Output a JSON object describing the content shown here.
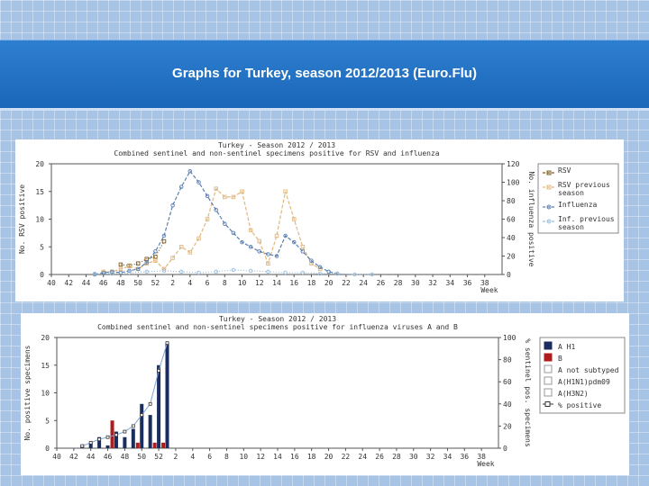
{
  "header": {
    "title": "Graphs for Turkey, season 2012/2013 (Euro.Flu)"
  },
  "chart_data": [
    {
      "type": "line",
      "title": "Turkey - Season 2012 / 2013",
      "subtitle": "Combined sentinel and non-sentinel specimens positive for RSV and influenza",
      "xlabel": "Week",
      "ylabel": "No. RSV positive",
      "y2label": "No. influenza positive",
      "xticks": [
        "40",
        "42",
        "44",
        "46",
        "48",
        "50",
        "52",
        "2",
        "4",
        "6",
        "8",
        "10",
        "12",
        "14",
        "16",
        "18",
        "20",
        "22",
        "24",
        "26",
        "28",
        "30",
        "32",
        "34",
        "36",
        "38"
      ],
      "ylim": [
        0,
        20
      ],
      "yticks": [
        "0",
        "5",
        "10",
        "15",
        "20"
      ],
      "y2lim": [
        0,
        120
      ],
      "y2ticks": [
        "0",
        "20",
        "40",
        "60",
        "80",
        "100",
        "120"
      ],
      "legend": {
        "position": "right"
      },
      "series": [
        {
          "name": "RSV",
          "axis": "y",
          "color": "#7a5a20",
          "style": "dotted-square",
          "x": [
            48,
            49,
            50,
            51,
            52,
            53
          ],
          "values": [
            1.8,
            1.6,
            2.0,
            2.8,
            3.2,
            6.0
          ]
        },
        {
          "name": "RSV previous season",
          "axis": "y",
          "color": "#e0b880",
          "style": "dash-square",
          "x": [
            46,
            47,
            48,
            49,
            50,
            51,
            52,
            53,
            54,
            55,
            56,
            57,
            58,
            59,
            60,
            61,
            62,
            63,
            64,
            65,
            66,
            67,
            68,
            69,
            70,
            71
          ],
          "values": [
            0.5,
            0.5,
            1.0,
            1.5,
            1.0,
            2.0,
            2.5,
            1.0,
            3.0,
            5.0,
            4.0,
            6.5,
            10.0,
            15.5,
            14.0,
            14.0,
            15.0,
            8.0,
            6.0,
            2.0,
            7.0,
            15.0,
            10.0,
            5.0,
            2.0,
            1.0
          ]
        },
        {
          "name": "Influenza",
          "axis": "y2",
          "color": "#5a7fb0",
          "style": "dash-circle",
          "x": [
            45,
            46,
            47,
            48,
            49,
            50,
            51,
            52,
            53,
            54,
            55,
            56,
            57,
            58,
            59,
            60,
            61,
            62,
            63,
            64,
            65,
            66,
            67,
            68,
            69,
            70,
            71,
            72,
            73
          ],
          "values": [
            0,
            2,
            3,
            2,
            4,
            6,
            13,
            25,
            42,
            75,
            95,
            112,
            100,
            85,
            70,
            55,
            45,
            35,
            30,
            25,
            22,
            20,
            42,
            35,
            25,
            15,
            8,
            3,
            1
          ]
        },
        {
          "name": "Inf. previous season",
          "axis": "y2",
          "color": "#9cc0e0",
          "style": "dot-circle",
          "x": [
            45,
            47,
            49,
            51,
            53,
            55,
            57,
            59,
            61,
            63,
            65,
            67,
            69,
            71,
            73,
            75,
            77
          ],
          "values": [
            1,
            1,
            2,
            3,
            4,
            3,
            2,
            3,
            5,
            4,
            3,
            2,
            2,
            1,
            1,
            0,
            0
          ]
        }
      ]
    },
    {
      "type": "bar",
      "title": "Turkey - Season 2012 / 2013",
      "subtitle": "Combined sentinel and non-sentinel specimens positive for influenza viruses A and B",
      "xlabel": "Week",
      "ylabel": "No. positive specimens",
      "y2label": "% sentinel pos. specimens",
      "xticks": [
        "40",
        "42",
        "44",
        "46",
        "48",
        "50",
        "52",
        "2",
        "4",
        "6",
        "8",
        "10",
        "12",
        "14",
        "16",
        "18",
        "20",
        "22",
        "24",
        "26",
        "28",
        "30",
        "32",
        "34",
        "36",
        "38"
      ],
      "ylim": [
        0,
        20
      ],
      "yticks": [
        "0",
        "5",
        "10",
        "15",
        "20"
      ],
      "y2lim": [
        0,
        100
      ],
      "y2ticks": [
        "0",
        "20",
        "40",
        "60",
        "80",
        "100"
      ],
      "legend": {
        "position": "right"
      },
      "weeks": [
        43,
        44,
        45,
        46,
        47,
        48,
        49,
        50,
        51,
        52,
        53
      ],
      "series": [
        {
          "name": "A H1",
          "color": "#1a2d5e",
          "type": "bar",
          "values": [
            0.5,
            1.0,
            2.0,
            0.5,
            3.0,
            2.0,
            3.5,
            8.0,
            6.0,
            15.0,
            19.0
          ]
        },
        {
          "name": "B",
          "color": "#b01c1c",
          "type": "bar",
          "values": [
            0,
            0,
            0,
            5.0,
            0,
            0,
            1.0,
            0,
            1.0,
            1.0,
            0
          ]
        },
        {
          "name": "A not subtyped",
          "color": "#888888",
          "type": "bar",
          "values": [
            0,
            0,
            0,
            0,
            0,
            0,
            0,
            0,
            0,
            0,
            0
          ]
        },
        {
          "name": "A(H1N1)pdm09",
          "color": "#cccccc",
          "type": "bar",
          "values": [
            0,
            0,
            0,
            0,
            0,
            0,
            0,
            0,
            0,
            0,
            0
          ]
        },
        {
          "name": "A(H3N2)",
          "color": "#dddddd",
          "type": "bar",
          "values": [
            0,
            0,
            0,
            0,
            0,
            0,
            0,
            0,
            0,
            0,
            0
          ]
        },
        {
          "name": "% positive",
          "color": "#7fa6d0",
          "type": "line",
          "axis": "y2",
          "values": [
            2,
            5,
            8,
            10,
            12,
            15,
            20,
            30,
            40,
            70,
            95
          ]
        }
      ]
    }
  ]
}
